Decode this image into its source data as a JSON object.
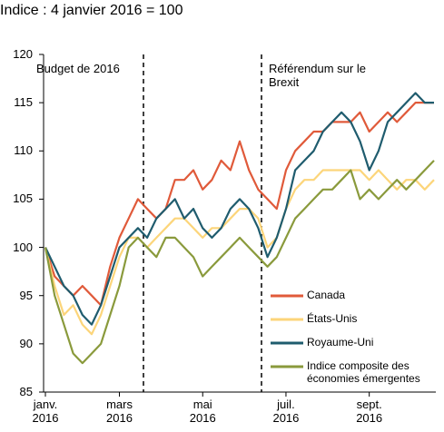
{
  "chart_data": {
    "type": "line",
    "title": "Indice : 4 janvier 2016 = 100",
    "annotations": [
      "Budget de 2016",
      "Référendum sur le Brexit"
    ],
    "categories": [
      "janv. 2016",
      null,
      null,
      null,
      null,
      null,
      null,
      null,
      "mars 2016",
      null,
      null,
      null,
      null,
      null,
      null,
      null,
      null,
      "mai 2016",
      null,
      null,
      null,
      null,
      null,
      null,
      null,
      null,
      "juil. 2016",
      null,
      null,
      null,
      null,
      null,
      null,
      null,
      null,
      "sept. 2016",
      null,
      null,
      null,
      null,
      null,
      null,
      null
    ],
    "series": [
      {
        "name": "Canada",
        "color": "#e05a3a",
        "values": [
          100,
          97,
          96,
          95,
          96,
          95,
          94,
          98,
          101,
          103,
          105,
          104,
          103,
          104,
          107,
          107,
          108,
          106,
          107,
          109,
          108,
          111,
          108,
          106,
          105,
          104,
          108,
          110,
          111,
          112,
          112,
          113,
          113,
          113,
          114,
          112,
          113,
          114,
          113,
          114,
          115,
          115,
          115
        ]
      },
      {
        "name": "États-Unis",
        "color": "#fcd57a",
        "values": [
          100,
          96,
          93,
          94,
          92,
          91,
          93,
          96,
          99,
          101,
          101,
          100,
          101,
          102,
          103,
          103,
          102,
          101,
          102,
          102,
          103,
          104,
          104,
          103,
          100,
          101,
          104,
          106,
          107,
          107,
          108,
          108,
          108,
          108,
          108,
          107,
          108,
          107,
          106,
          107,
          107,
          106,
          107
        ]
      },
      {
        "name": "Royaume-Uni",
        "color": "#1f5c6e",
        "values": [
          100,
          98,
          96,
          95,
          93,
          92,
          94,
          97,
          100,
          101,
          102,
          101,
          103,
          104,
          105,
          103,
          104,
          102,
          101,
          102,
          104,
          105,
          104,
          102,
          99,
          101,
          104,
          108,
          109,
          110,
          112,
          113,
          114,
          113,
          111,
          108,
          110,
          113,
          114,
          115,
          116,
          115,
          115
        ]
      },
      {
        "name": "Indice composite des économies émergentes",
        "color": "#8a9a3c",
        "values": [
          100,
          95,
          92,
          89,
          88,
          89,
          90,
          93,
          96,
          100,
          101,
          100,
          99,
          101,
          101,
          100,
          99,
          97,
          98,
          99,
          100,
          101,
          100,
          99,
          98,
          99,
          101,
          103,
          104,
          105,
          106,
          106,
          107,
          108,
          105,
          106,
          105,
          106,
          107,
          106,
          107,
          108,
          109
        ]
      }
    ],
    "ylim": [
      85,
      120
    ],
    "yticks": [
      85,
      90,
      95,
      100,
      105,
      110,
      115,
      120
    ],
    "grid": false
  }
}
